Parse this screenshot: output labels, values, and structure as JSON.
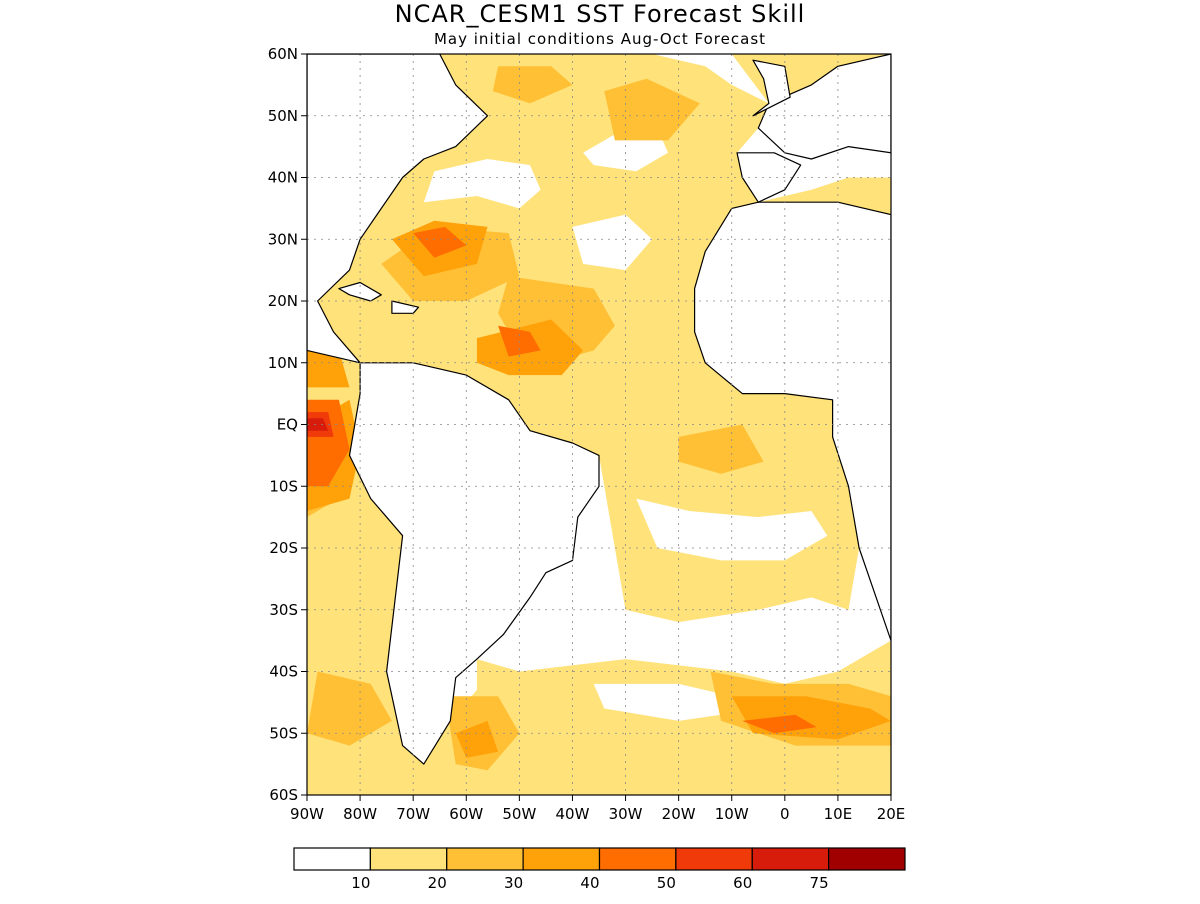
{
  "title": "NCAR_CESM1  SST Forecast Skill",
  "subtitle": "May initial conditions  Aug-Oct Forecast",
  "map": {
    "lon_range": [
      -90,
      20
    ],
    "lat_range": [
      -60,
      60
    ],
    "grid_style": "dotted",
    "lat_labels": [
      "60N",
      "50N",
      "40N",
      "30N",
      "20N",
      "10N",
      "EQ",
      "10S",
      "20S",
      "30S",
      "40S",
      "50S",
      "60S"
    ],
    "lat_values": [
      60,
      50,
      40,
      30,
      20,
      10,
      0,
      -10,
      -20,
      -30,
      -40,
      -50,
      -60
    ],
    "lon_labels": [
      "90W",
      "80W",
      "70W",
      "60W",
      "50W",
      "40W",
      "30W",
      "20W",
      "10W",
      "0",
      "10E",
      "20E"
    ],
    "lon_values": [
      -90,
      -80,
      -70,
      -60,
      -50,
      -40,
      -30,
      -20,
      -10,
      0,
      10,
      20
    ]
  },
  "colorbar": {
    "colors": [
      "#ffffff",
      "#ffe27a",
      "#ffc035",
      "#ffa20a",
      "#ff6c00",
      "#f03a0a",
      "#d81c0c",
      "#a10000"
    ],
    "labels": [
      "10",
      "20",
      "30",
      "40",
      "50",
      "60",
      "75"
    ]
  },
  "skill_regions": [
    {
      "level": 1,
      "pts": [
        [
          -90,
          -60
        ],
        [
          -40,
          -60
        ],
        [
          -40,
          -45
        ],
        [
          -55,
          -40
        ],
        [
          -63,
          -48
        ],
        [
          -68,
          -55
        ],
        [
          -72,
          -52
        ],
        [
          -75,
          -40
        ],
        [
          -72,
          -18
        ],
        [
          -78,
          -12
        ],
        [
          -82,
          -5
        ],
        [
          -80,
          5
        ],
        [
          -80,
          10
        ],
        [
          -90,
          12
        ]
      ]
    },
    {
      "level": 1,
      "pts": [
        [
          -90,
          12
        ],
        [
          -80,
          10
        ],
        [
          -80,
          22
        ],
        [
          -82,
          30
        ],
        [
          -90,
          30
        ]
      ]
    },
    {
      "level": 1,
      "pts": [
        [
          -58,
          -38
        ],
        [
          -50,
          -40
        ],
        [
          -30,
          -38
        ],
        [
          -10,
          -40
        ],
        [
          0,
          -42
        ],
        [
          10,
          -40
        ],
        [
          20,
          -35
        ],
        [
          20,
          -60
        ],
        [
          -58,
          -60
        ]
      ]
    },
    {
      "level": 1,
      "pts": [
        [
          -35,
          -5
        ],
        [
          -30,
          -30
        ],
        [
          -20,
          -32
        ],
        [
          -5,
          -30
        ],
        [
          5,
          -28
        ],
        [
          12,
          -30
        ],
        [
          14,
          -20
        ],
        [
          12,
          -10
        ],
        [
          9,
          -2
        ],
        [
          9,
          4
        ],
        [
          0,
          5
        ],
        [
          -8,
          5
        ],
        [
          -15,
          10
        ],
        [
          -17,
          15
        ],
        [
          -17,
          22
        ],
        [
          -15,
          28
        ],
        [
          -10,
          35
        ],
        [
          -5,
          36
        ],
        [
          -8,
          40
        ],
        [
          -9,
          44
        ],
        [
          -5,
          48
        ],
        [
          -3,
          52
        ],
        [
          -10,
          55
        ],
        [
          -15,
          58
        ],
        [
          -25,
          60
        ],
        [
          -65,
          60
        ],
        [
          -62,
          55
        ],
        [
          -56,
          50
        ],
        [
          -62,
          45
        ],
        [
          -68,
          43
        ],
        [
          -72,
          40
        ],
        [
          -76,
          35
        ],
        [
          -80,
          30
        ],
        [
          -82,
          25
        ],
        [
          -88,
          20
        ],
        [
          -85,
          15
        ],
        [
          -80,
          10
        ],
        [
          -70,
          10
        ],
        [
          -60,
          8
        ],
        [
          -52,
          4
        ],
        [
          -48,
          -1
        ],
        [
          -40,
          -3
        ]
      ]
    },
    {
      "level": 1,
      "pts": [
        [
          -5,
          36
        ],
        [
          5,
          38
        ],
        [
          12,
          40
        ],
        [
          20,
          40
        ],
        [
          20,
          34
        ],
        [
          10,
          36
        ],
        [
          0,
          36
        ]
      ]
    },
    {
      "level": 1,
      "pts": [
        [
          -3,
          52
        ],
        [
          5,
          55
        ],
        [
          10,
          58
        ],
        [
          20,
          60
        ],
        [
          -10,
          60
        ]
      ]
    },
    {
      "level": 0,
      "pts": [
        [
          -68,
          36
        ],
        [
          -58,
          37
        ],
        [
          -50,
          35
        ],
        [
          -46,
          38
        ],
        [
          -48,
          42
        ],
        [
          -56,
          43
        ],
        [
          -66,
          41
        ]
      ]
    },
    {
      "level": 0,
      "pts": [
        [
          -40,
          32
        ],
        [
          -30,
          34
        ],
        [
          -25,
          30
        ],
        [
          -30,
          25
        ],
        [
          -38,
          26
        ]
      ]
    },
    {
      "level": 0,
      "pts": [
        [
          -38,
          44
        ],
        [
          -30,
          48
        ],
        [
          -24,
          48
        ],
        [
          -22,
          44
        ],
        [
          -28,
          41
        ],
        [
          -36,
          42
        ]
      ]
    },
    {
      "level": 0,
      "pts": [
        [
          -28,
          -12
        ],
        [
          -18,
          -14
        ],
        [
          -5,
          -15
        ],
        [
          5,
          -14
        ],
        [
          8,
          -18
        ],
        [
          0,
          -22
        ],
        [
          -12,
          -22
        ],
        [
          -24,
          -20
        ]
      ]
    },
    {
      "level": 0,
      "pts": [
        [
          -38,
          -24
        ],
        [
          -32,
          -26
        ],
        [
          -34,
          -30
        ],
        [
          -40,
          -28
        ]
      ]
    },
    {
      "level": 0,
      "pts": [
        [
          -36,
          -42
        ],
        [
          -20,
          -42
        ],
        [
          -10,
          -44
        ],
        [
          -4,
          -46
        ],
        [
          -20,
          -48
        ],
        [
          -34,
          -46
        ]
      ]
    },
    {
      "level": 2,
      "pts": [
        [
          -90,
          -15
        ],
        [
          -84,
          -12
        ],
        [
          -82,
          -6
        ],
        [
          -90,
          -6
        ]
      ]
    },
    {
      "level": 2,
      "pts": [
        [
          -76,
          26
        ],
        [
          -66,
          32
        ],
        [
          -52,
          31
        ],
        [
          -50,
          24
        ],
        [
          -60,
          20
        ],
        [
          -70,
          20
        ]
      ]
    },
    {
      "level": 2,
      "pts": [
        [
          -52,
          24
        ],
        [
          -36,
          22
        ],
        [
          -32,
          16
        ],
        [
          -36,
          12
        ],
        [
          -44,
          10
        ],
        [
          -50,
          12
        ],
        [
          -54,
          18
        ]
      ]
    },
    {
      "level": 2,
      "pts": [
        [
          -20,
          -2
        ],
        [
          -8,
          0
        ],
        [
          -4,
          -6
        ],
        [
          -12,
          -8
        ],
        [
          -20,
          -6
        ]
      ]
    },
    {
      "level": 2,
      "pts": [
        [
          -14,
          -40
        ],
        [
          -2,
          -42
        ],
        [
          12,
          -42
        ],
        [
          20,
          -44
        ],
        [
          20,
          -52
        ],
        [
          2,
          -52
        ],
        [
          -12,
          -48
        ]
      ]
    },
    {
      "level": 2,
      "pts": [
        [
          -64,
          -44
        ],
        [
          -54,
          -44
        ],
        [
          -50,
          -50
        ],
        [
          -56,
          -56
        ],
        [
          -62,
          -55
        ]
      ]
    },
    {
      "level": 2,
      "pts": [
        [
          -32,
          46
        ],
        [
          -22,
          46
        ],
        [
          -16,
          52
        ],
        [
          -26,
          56
        ],
        [
          -34,
          54
        ]
      ]
    },
    {
      "level": 2,
      "pts": [
        [
          -90,
          30
        ],
        [
          -84,
          30
        ],
        [
          -84,
          24
        ],
        [
          -90,
          24
        ]
      ]
    },
    {
      "level": 2,
      "pts": [
        [
          -88,
          -40
        ],
        [
          -78,
          -42
        ],
        [
          -74,
          -48
        ],
        [
          -82,
          -52
        ],
        [
          -90,
          -50
        ]
      ]
    },
    {
      "level": 2,
      "pts": [
        [
          -54,
          58
        ],
        [
          -44,
          58
        ],
        [
          -40,
          55
        ],
        [
          -48,
          52
        ],
        [
          -55,
          54
        ]
      ]
    },
    {
      "level": 3,
      "pts": [
        [
          -74,
          30
        ],
        [
          -66,
          33
        ],
        [
          -56,
          32
        ],
        [
          -58,
          26
        ],
        [
          -68,
          24
        ]
      ]
    },
    {
      "level": 3,
      "pts": [
        [
          -58,
          14
        ],
        [
          -44,
          17
        ],
        [
          -38,
          12
        ],
        [
          -42,
          8
        ],
        [
          -52,
          8
        ],
        [
          -58,
          10
        ]
      ]
    },
    {
      "level": 3,
      "pts": [
        [
          -90,
          0
        ],
        [
          -82,
          4
        ],
        [
          -80,
          -4
        ],
        [
          -82,
          -12
        ],
        [
          -90,
          -14
        ]
      ]
    },
    {
      "level": 3,
      "pts": [
        [
          -10,
          -44
        ],
        [
          4,
          -44
        ],
        [
          16,
          -46
        ],
        [
          20,
          -48
        ],
        [
          10,
          -51
        ],
        [
          -6,
          -50
        ]
      ]
    },
    {
      "level": 3,
      "pts": [
        [
          -62,
          -50
        ],
        [
          -56,
          -48
        ],
        [
          -54,
          -53
        ],
        [
          -60,
          -54
        ]
      ]
    },
    {
      "level": 3,
      "pts": [
        [
          -90,
          14
        ],
        [
          -84,
          12
        ],
        [
          -82,
          6
        ],
        [
          -90,
          6
        ]
      ]
    },
    {
      "level": 4,
      "pts": [
        [
          -70,
          31
        ],
        [
          -64,
          32
        ],
        [
          -60,
          29
        ],
        [
          -66,
          27
        ]
      ]
    },
    {
      "level": 4,
      "pts": [
        [
          -54,
          16
        ],
        [
          -48,
          15
        ],
        [
          -46,
          12
        ],
        [
          -52,
          11
        ]
      ]
    },
    {
      "level": 4,
      "pts": [
        [
          -90,
          4
        ],
        [
          -84,
          4
        ],
        [
          -82,
          -4
        ],
        [
          -86,
          -10
        ],
        [
          -90,
          -10
        ]
      ]
    },
    {
      "level": 4,
      "pts": [
        [
          -8,
          -48
        ],
        [
          2,
          -47
        ],
        [
          6,
          -49
        ],
        [
          -2,
          -50
        ]
      ]
    },
    {
      "level": 5,
      "pts": [
        [
          -90,
          2
        ],
        [
          -86,
          2
        ],
        [
          -85,
          -2
        ],
        [
          -90,
          -2
        ]
      ]
    },
    {
      "level": 6,
      "pts": [
        [
          -90,
          1
        ],
        [
          -87,
          1
        ],
        [
          -86,
          -1
        ],
        [
          -90,
          -1
        ]
      ]
    }
  ],
  "land": [
    {
      "name": "North America",
      "pts": [
        [
          -90,
          60
        ],
        [
          -65,
          60
        ],
        [
          -62,
          55
        ],
        [
          -56,
          50
        ],
        [
          -62,
          45
        ],
        [
          -68,
          43
        ],
        [
          -72,
          40
        ],
        [
          -76,
          35
        ],
        [
          -80,
          30
        ],
        [
          -82,
          25
        ],
        [
          -88,
          20
        ],
        [
          -85,
          15
        ],
        [
          -80,
          10
        ],
        [
          -90,
          12
        ]
      ]
    },
    {
      "name": "South America",
      "pts": [
        [
          -80,
          10
        ],
        [
          -70,
          10
        ],
        [
          -60,
          8
        ],
        [
          -52,
          4
        ],
        [
          -48,
          -1
        ],
        [
          -40,
          -3
        ],
        [
          -35,
          -5
        ],
        [
          -35,
          -10
        ],
        [
          -39,
          -15
        ],
        [
          -40,
          -22
        ],
        [
          -45,
          -24
        ],
        [
          -48,
          -28
        ],
        [
          -53,
          -34
        ],
        [
          -58,
          -38
        ],
        [
          -62,
          -41
        ],
        [
          -63,
          -48
        ],
        [
          -68,
          -55
        ],
        [
          -72,
          -52
        ],
        [
          -75,
          -40
        ],
        [
          -72,
          -18
        ],
        [
          -78,
          -12
        ],
        [
          -82,
          -5
        ],
        [
          -80,
          5
        ]
      ]
    },
    {
      "name": "Africa",
      "pts": [
        [
          20,
          34
        ],
        [
          10,
          36
        ],
        [
          -5,
          36
        ],
        [
          -10,
          35
        ],
        [
          -15,
          28
        ],
        [
          -17,
          22
        ],
        [
          -17,
          15
        ],
        [
          -15,
          10
        ],
        [
          -8,
          5
        ],
        [
          0,
          5
        ],
        [
          9,
          4
        ],
        [
          9,
          -2
        ],
        [
          12,
          -10
        ],
        [
          14,
          -20
        ],
        [
          18,
          -30
        ],
        [
          20,
          -35
        ]
      ]
    },
    {
      "name": "Iberia",
      "pts": [
        [
          -9,
          44
        ],
        [
          -8,
          40
        ],
        [
          -5,
          36
        ],
        [
          0,
          38
        ],
        [
          3,
          42
        ],
        [
          -2,
          44
        ]
      ]
    },
    {
      "name": "Europe",
      "pts": [
        [
          -5,
          48
        ],
        [
          -3,
          52
        ],
        [
          5,
          55
        ],
        [
          10,
          58
        ],
        [
          20,
          60
        ],
        [
          20,
          44
        ],
        [
          12,
          45
        ],
        [
          5,
          43
        ],
        [
          0,
          44
        ]
      ]
    },
    {
      "name": "Britain",
      "pts": [
        [
          -6,
          50
        ],
        [
          -3,
          52
        ],
        [
          -4,
          56
        ],
        [
          -6,
          59
        ],
        [
          0,
          58
        ],
        [
          1,
          53
        ]
      ]
    },
    {
      "name": "Cuba",
      "pts": [
        [
          -84,
          22
        ],
        [
          -80,
          23
        ],
        [
          -76,
          21
        ],
        [
          -78,
          20
        ],
        [
          -82,
          21
        ]
      ]
    },
    {
      "name": "Hispaniola",
      "pts": [
        [
          -74,
          20
        ],
        [
          -69,
          19
        ],
        [
          -70,
          18
        ],
        [
          -74,
          18
        ]
      ]
    }
  ]
}
